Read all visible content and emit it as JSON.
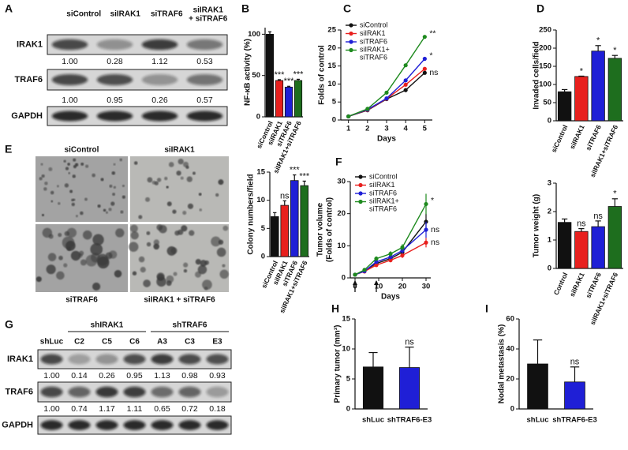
{
  "panels": {
    "A": {
      "letter": "A",
      "columns": [
        "siControl",
        "siIRAK1",
        "siTRAF6",
        "siIRAK1 + siTRAF6"
      ],
      "rows": [
        {
          "label": "IRAK1",
          "values": [
            "1.00",
            "0.28",
            "1.12",
            "0.53"
          ]
        },
        {
          "label": "TRAF6",
          "values": [
            "1.00",
            "0.95",
            "0.26",
            "0.57"
          ]
        },
        {
          "label": "GAPDH"
        }
      ]
    },
    "E": {
      "letter": "E",
      "images": [
        "siControl",
        "siIRAK1",
        "siTRAF6",
        "siIRAK1 + siTRAF6"
      ]
    },
    "G": {
      "letter": "G",
      "control": "shLuc",
      "groups": [
        {
          "label": "shIRAK1",
          "columns": [
            "C2",
            "C5",
            "C6"
          ]
        },
        {
          "label": "shTRAF6",
          "columns": [
            "A3",
            "C3",
            "E3"
          ]
        }
      ],
      "rows": [
        {
          "label": "IRAK1",
          "values": [
            "1.00",
            "0.14",
            "0.26",
            "0.95",
            "1.13",
            "0.98",
            "0.93"
          ]
        },
        {
          "label": "TRAF6",
          "values": [
            "1.00",
            "0.74",
            "1.17",
            "1.11",
            "0.65",
            "0.72",
            "0.18"
          ]
        },
        {
          "label": "GAPDH"
        }
      ]
    }
  },
  "chart_data": [
    {
      "type": "bar",
      "panel": "B",
      "ylabel": "NF-κB activity (%)",
      "categories": [
        "siControl",
        "siIRAK1",
        "siTRAF6",
        "siIRAK1+siTRAF6"
      ],
      "values": [
        100,
        44,
        36,
        44
      ],
      "errors": [
        3,
        1,
        1,
        1.5
      ],
      "colors": [
        "#111111",
        "#e8201e",
        "#1f1fd6",
        "#1e6e1e"
      ],
      "ylim": [
        0,
        108
      ],
      "yticks": [
        0,
        50,
        100
      ],
      "annotations": [
        null,
        "***",
        "***",
        "***"
      ]
    },
    {
      "type": "line",
      "panel": "C",
      "xlabel": "Days",
      "ylabel": "Folds of control",
      "x": [
        1,
        2,
        3,
        4,
        5
      ],
      "xlim": [
        0.6,
        5.4
      ],
      "xticks": [
        1,
        2,
        3,
        4,
        5
      ],
      "ylim": [
        0,
        25
      ],
      "yticks": [
        0,
        5,
        10,
        15,
        20,
        25
      ],
      "series": [
        {
          "name": "siControl",
          "color": "#111111",
          "values": [
            1,
            2.7,
            5.8,
            8.3,
            13.1
          ],
          "annotation": "ns"
        },
        {
          "name": "siIRAK1",
          "color": "#e8201e",
          "values": [
            1,
            2.8,
            5.9,
            9.8,
            14.2
          ],
          "annotation": null
        },
        {
          "name": "siTRAF6",
          "color": "#1f1fd6",
          "values": [
            1,
            2.9,
            6.0,
            11,
            17
          ],
          "annotation": "*"
        },
        {
          "name": "siIRAK1+ siTRAF6",
          "color": "#1e8a1e",
          "values": [
            1,
            3.1,
            7.6,
            15.2,
            23.1
          ],
          "annotation": "**"
        }
      ]
    },
    {
      "type": "bar",
      "panel": "D",
      "ylabel": "Invaded cells/field",
      "categories": [
        "siControl",
        "siIRAK1",
        "siTRAF6",
        "siIRAK1+siTRAF6"
      ],
      "values": [
        80,
        122,
        192,
        172
      ],
      "errors": [
        6,
        1,
        15,
        8
      ],
      "colors": [
        "#111111",
        "#e8201e",
        "#1f1fd6",
        "#1e6e1e"
      ],
      "ylim": [
        0,
        250
      ],
      "yticks": [
        0,
        50,
        100,
        150,
        200,
        250
      ],
      "annotations": [
        null,
        "*",
        "*",
        "*"
      ]
    },
    {
      "type": "bar",
      "ylabel": "Colony numbers/field",
      "categories": [
        "siControl",
        "siIRAK1",
        "siTRAF6",
        "siIRAK1+siTRAF6"
      ],
      "values": [
        7.1,
        9.1,
        13.5,
        12.6
      ],
      "errors": [
        0.7,
        0.8,
        1.0,
        0.8
      ],
      "colors": [
        "#111111",
        "#e8201e",
        "#1f1fd6",
        "#1e6e1e"
      ],
      "ylim": [
        0,
        15
      ],
      "yticks": [
        0,
        5,
        10,
        15
      ],
      "annotations": [
        null,
        "ns",
        "***",
        "***"
      ]
    },
    {
      "type": "line",
      "panel": "F",
      "xlabel": "Days",
      "ylabel": [
        "Tumor volume",
        "(Folds of control)"
      ],
      "x": [
        0,
        4,
        9,
        15,
        20,
        30
      ],
      "xlim": [
        -2,
        32
      ],
      "xticks": [
        0,
        10,
        20,
        30
      ],
      "ylim": [
        0,
        30
      ],
      "yticks": [
        0,
        10,
        20,
        30
      ],
      "series": [
        {
          "name": "siControl",
          "color": "#111111",
          "values": [
            1,
            2.2,
            4.5,
            6,
            8,
            17.5
          ],
          "errors": [
            0,
            0.3,
            0.5,
            0.6,
            0.8,
            2.5
          ],
          "annotation": null
        },
        {
          "name": "siIRAK1",
          "color": "#e8201e",
          "values": [
            1,
            2,
            4,
            5.5,
            7,
            11
          ],
          "errors": [
            0,
            0.3,
            0.5,
            0.6,
            0.8,
            1.5
          ],
          "annotation": "ns"
        },
        {
          "name": "siTRAF6",
          "color": "#1f1fd6",
          "values": [
            1,
            2.1,
            5,
            6.5,
            8.5,
            15
          ],
          "errors": [
            0,
            0.3,
            0.6,
            0.7,
            0.9,
            2.5
          ],
          "annotation": "ns"
        },
        {
          "name": "siIRAK1+ siTRAF6",
          "color": "#1e8a1e",
          "values": [
            1,
            2.5,
            6,
            7.5,
            9.5,
            23
          ],
          "errors": [
            0,
            0.3,
            0.7,
            0.8,
            1,
            3.2
          ],
          "annotation": "*"
        }
      ]
    },
    {
      "type": "bar",
      "ylabel": "Tumor weight (g)",
      "categories": [
        "Control",
        "siIRAK1",
        "siTRAF6",
        "siIRAK1+siTRAF6"
      ],
      "values": [
        1.62,
        1.3,
        1.47,
        2.18
      ],
      "errors": [
        0.12,
        0.1,
        0.2,
        0.27
      ],
      "colors": [
        "#111111",
        "#e8201e",
        "#1f1fd6",
        "#1e6e1e"
      ],
      "ylim": [
        0,
        3
      ],
      "yticks": [
        0,
        1,
        2,
        3
      ],
      "annotations": [
        null,
        "ns",
        "ns",
        "*"
      ]
    },
    {
      "type": "bar",
      "panel": "H",
      "ylabel": "Primary tumor (mm³)",
      "categories": [
        "shLuc",
        "shTRAF6-E3"
      ],
      "values": [
        7.0,
        6.9
      ],
      "errors": [
        2.4,
        3.4
      ],
      "colors": [
        "#111111",
        "#1f1fd6"
      ],
      "ylim": [
        0,
        15
      ],
      "yticks": [
        0,
        5,
        10,
        15
      ],
      "annotations": [
        null,
        "ns"
      ]
    },
    {
      "type": "bar",
      "panel": "I",
      "ylabel": "Nodal metastasis (%)",
      "categories": [
        "shLuc",
        "shTRAF6-E3"
      ],
      "values": [
        30,
        18
      ],
      "errors": [
        16,
        10
      ],
      "colors": [
        "#111111",
        "#1f1fd6"
      ],
      "ylim": [
        0,
        60
      ],
      "yticks": [
        0,
        20,
        40,
        60
      ],
      "annotations": [
        null,
        "ns"
      ]
    }
  ]
}
